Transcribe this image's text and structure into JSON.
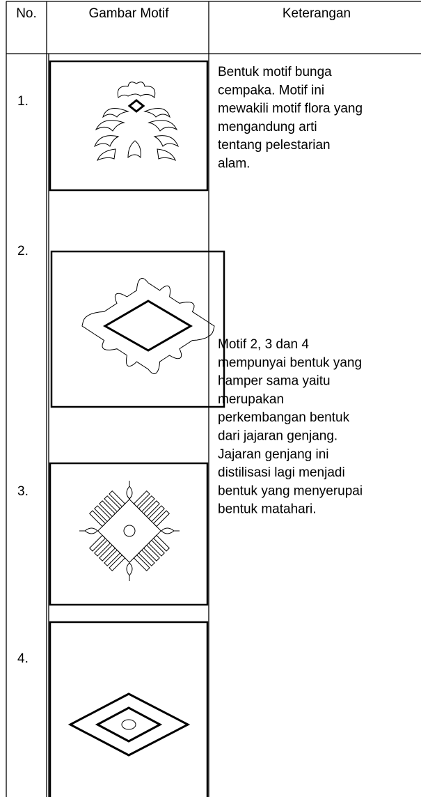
{
  "table": {
    "header": [
      "No.",
      "Gambar Motif",
      "Keterangan"
    ],
    "rows": [
      {
        "number": "1.",
        "description": [
          "Bentuk motif bunga",
          "cempaka. Motif ini",
          "mewakili motif flora yang",
          "mengandung arti",
          "tentang pelestarian",
          "alam."
        ]
      },
      {
        "number": "2.",
        "description": [
          "Motif 2, 3 dan 4",
          "mempunyai bentuk yang",
          "hamper sama yaitu",
          "merupakan",
          "perkembangan bentuk",
          "dari jajaran genjang.",
          "Jajaran genjang ini",
          "distilisasi lagi menjadi",
          "bentuk yang menyerupai",
          "bentuk matahari."
        ]
      },
      {
        "number": "3."
      },
      {
        "number": "4."
      }
    ]
  }
}
